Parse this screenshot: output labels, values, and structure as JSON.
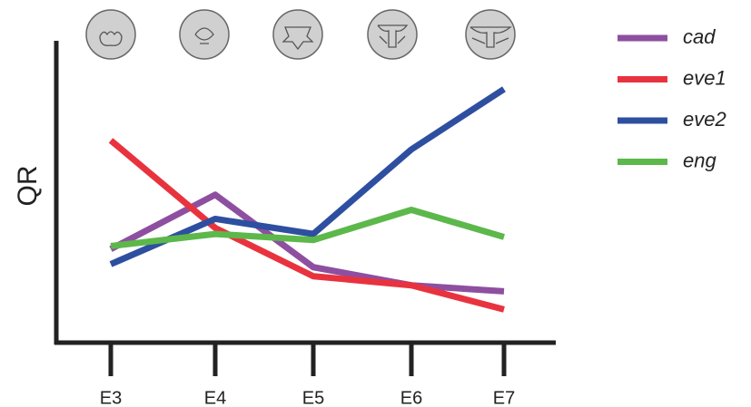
{
  "chart_data": {
    "type": "line",
    "y_label": "QR",
    "categories": [
      "E3",
      "E4",
      "E5",
      "E6",
      "E7"
    ],
    "ylim": [
      0,
      100
    ],
    "series": [
      {
        "name": "cad",
        "color": "#8e4fa0",
        "values": [
          31,
          49,
          25,
          19,
          17
        ]
      },
      {
        "name": "eve1",
        "color": "#e8333f",
        "values": [
          67,
          38,
          22,
          19,
          11
        ]
      },
      {
        "name": "eve2",
        "color": "#2e4fa0",
        "values": [
          26,
          41,
          36,
          64,
          84
        ]
      },
      {
        "name": "eng",
        "color": "#5cb84a",
        "values": [
          32,
          36,
          34,
          44,
          35
        ]
      }
    ]
  }
}
